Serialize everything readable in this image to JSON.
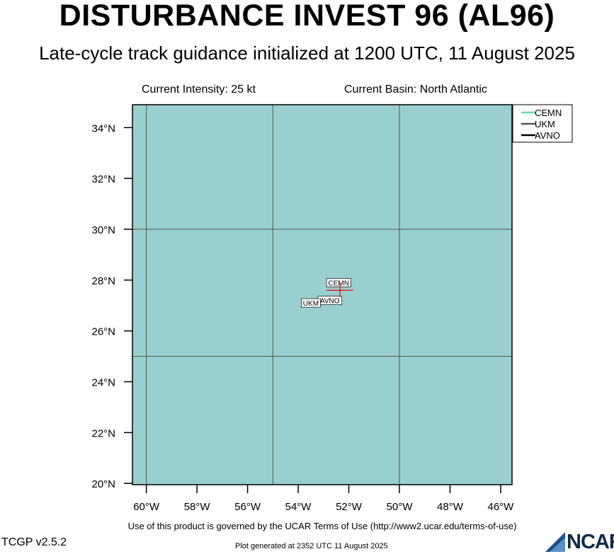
{
  "header": {
    "title": "DISTURBANCE INVEST 96 (AL96)",
    "subtitle": "Late-cycle track guidance initialized at 1200 UTC, 11 August 2025",
    "intensity": "Current Intensity: 25 kt",
    "basin": "Current Basin: North Atlantic"
  },
  "map": {
    "ocean_color": "#99cfcf",
    "grid_color": "#555555",
    "lon_range": [
      -60.55,
      -45.55
    ],
    "lat_range": [
      19.95,
      34.9
    ],
    "lat_ticks": [
      {
        "value": 34,
        "label": "34°N"
      },
      {
        "value": 32,
        "label": "32°N"
      },
      {
        "value": 30,
        "label": "30°N"
      },
      {
        "value": 28,
        "label": "28°N"
      },
      {
        "value": 26,
        "label": "26°N"
      },
      {
        "value": 24,
        "label": "24°N"
      },
      {
        "value": 22,
        "label": "22°N"
      },
      {
        "value": 20,
        "label": "20°N"
      }
    ],
    "lon_ticks": [
      {
        "value": -60,
        "label": "60°W"
      },
      {
        "value": -58,
        "label": "58°W"
      },
      {
        "value": -56,
        "label": "56°W"
      },
      {
        "value": -54,
        "label": "54°W"
      },
      {
        "value": -52,
        "label": "52°W"
      },
      {
        "value": -50,
        "label": "50°W"
      },
      {
        "value": -48,
        "label": "48°W"
      },
      {
        "value": -46,
        "label": "46°W"
      }
    ],
    "grid_lons": [
      -60,
      -55,
      -50
    ],
    "grid_lats": [
      30,
      25
    ],
    "current_position": {
      "lon": -52.35,
      "lat": 27.6,
      "color": "#ff0000"
    },
    "model_labels": [
      {
        "name": "CEMN",
        "lon": -52.4,
        "lat": 27.9
      },
      {
        "name": "AVNO",
        "lon": -52.75,
        "lat": 27.2
      },
      {
        "name": "UKM",
        "lon": -53.5,
        "lat": 27.1
      }
    ]
  },
  "legend": {
    "items": [
      {
        "name": "CEMN",
        "color": "#66ddbb"
      },
      {
        "name": "UKM",
        "color": "#555555"
      },
      {
        "name": "AVNO",
        "color": "#000000"
      }
    ]
  },
  "footer": {
    "terms": "Use of this product is governed by the UCAR Terms of Use (http://www2.ucar.edu/terms-of-use)",
    "version": "TCGP v2.5.2",
    "generated": "Plot generated at 2352 UTC   11 August 2025",
    "logo_text": "NCAR"
  }
}
